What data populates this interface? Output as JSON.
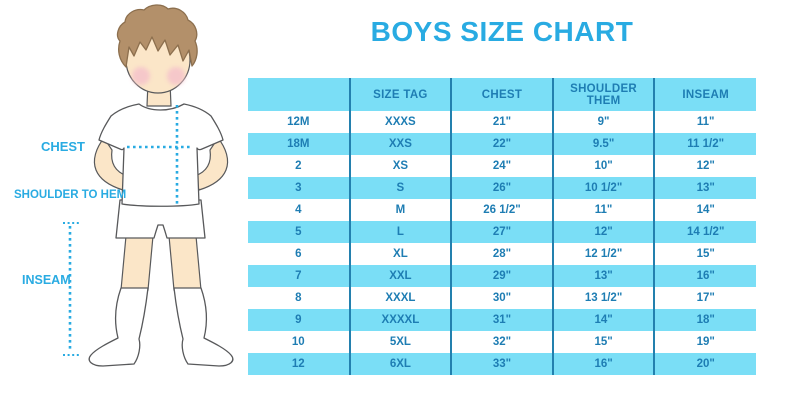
{
  "title": "BOYS SIZE CHART",
  "colors": {
    "accent": "#29ABE2",
    "cyan": "#7ADEF6",
    "table_text": "#1E7DB3",
    "divider": "#2380AE",
    "hair": "#B3906A",
    "hair_line": "#8C6F4E",
    "skin": "#FBE6C8",
    "outline": "#58595B",
    "cheek": "#F5C3CB"
  },
  "figure": {
    "labels": {
      "chest": "CHEST",
      "shoulder_to_hem": "SHOULDER TO HEM",
      "inseam": "INSEAM"
    }
  },
  "table": {
    "columns": [
      "",
      "SIZE TAG",
      "CHEST",
      "SHOULDER THEM",
      "INSEAM"
    ],
    "rows": [
      [
        "12M",
        "XXXS",
        "21\"",
        "9\"",
        "11\""
      ],
      [
        "18M",
        "XXS",
        "22\"",
        "9.5\"",
        "11 1/2\""
      ],
      [
        "2",
        "XS",
        "24\"",
        "10\"",
        "12\""
      ],
      [
        "3",
        "S",
        "26\"",
        "10 1/2\"",
        "13\""
      ],
      [
        "4",
        "M",
        "26 1/2\"",
        "11\"",
        "14\""
      ],
      [
        "5",
        "L",
        "27\"",
        "12\"",
        "14 1/2\""
      ],
      [
        "6",
        "XL",
        "28\"",
        "12 1/2\"",
        "15\""
      ],
      [
        "7",
        "XXL",
        "29\"",
        "13\"",
        "16\""
      ],
      [
        "8",
        "XXXL",
        "30\"",
        "13 1/2\"",
        "17\""
      ],
      [
        "9",
        "XXXXL",
        "31\"",
        "14\"",
        "18\""
      ],
      [
        "10",
        "5XL",
        "32\"",
        "15\"",
        "19\""
      ],
      [
        "12",
        "6XL",
        "33\"",
        "16\"",
        "20\""
      ]
    ]
  }
}
